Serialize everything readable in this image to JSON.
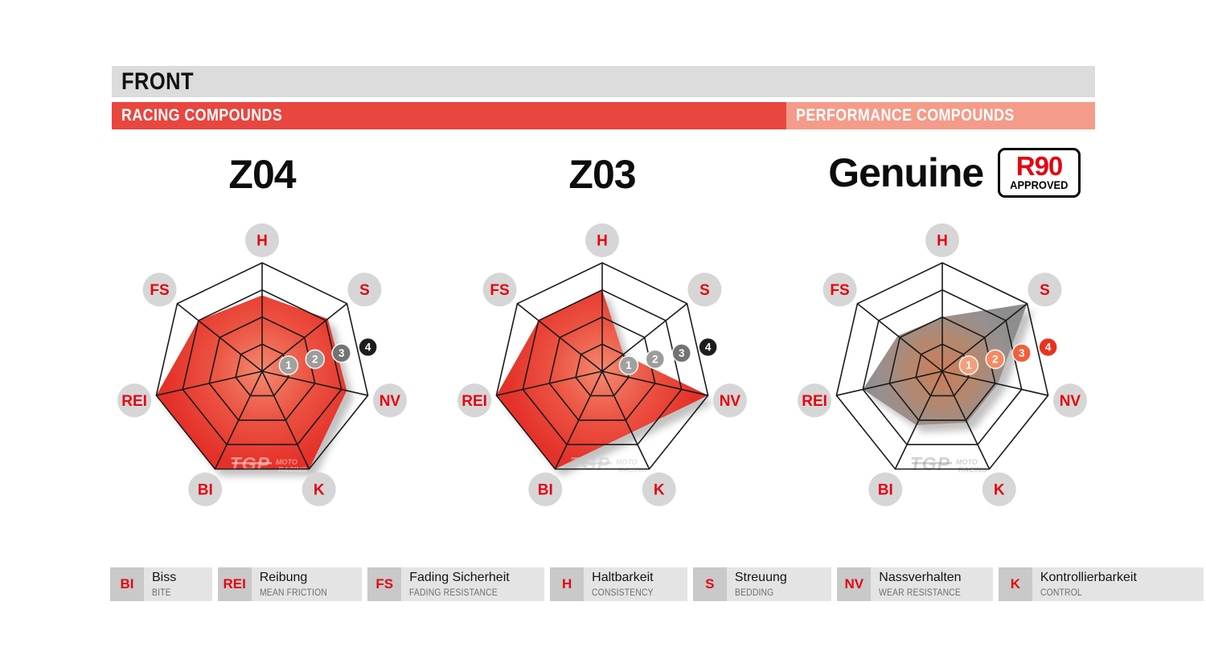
{
  "header": {
    "title": "FRONT",
    "racing_label": "RACING COMPOUNDS",
    "performance_label": "PERFORMANCE COMPOUNDS"
  },
  "badge": {
    "line1": "R90",
    "line2": "APPROVED"
  },
  "watermark": {
    "logo": "TGP",
    "line1": "MOTO",
    "line2": "RACING"
  },
  "colors": {
    "header_gray": "#dcdcdc",
    "racing_red": "#e8463f",
    "performance_salmon": "#f49b89",
    "label_red": "#e30613",
    "label_circle_gray": "#d6d6d6",
    "grid_black": "#1b1b1b",
    "legend_abbr_bg": "#c9c9c9",
    "legend_text_bg": "#e4e4e4",
    "legend_english_gray": "#6e6e6e"
  },
  "chart_data": [
    {
      "type": "radar",
      "title": "Z04",
      "group": "RACING COMPOUNDS",
      "axes": [
        "H",
        "S",
        "NV",
        "K",
        "BI",
        "REI",
        "FS"
      ],
      "values": [
        2.8,
        3.1,
        3.2,
        4,
        4,
        4,
        3
      ],
      "scale_range": [
        0,
        4
      ],
      "scale_ticks": [
        1,
        2,
        3,
        4
      ],
      "marker_colors": [
        "#a1a1a0",
        "#9c9c9b",
        "#737372",
        "#1d1d1b"
      ],
      "fill_stops": [
        {
          "offset": 0,
          "color": "#f38970"
        },
        {
          "offset": 0.5,
          "color": "#ec5443"
        },
        {
          "offset": 1,
          "color": "#e43129"
        }
      ],
      "watermark_color": "rgba(255,255,255,0.45)"
    },
    {
      "type": "radar",
      "title": "Z03",
      "group": "RACING COMPOUNDS",
      "axes": [
        "H",
        "S",
        "NV",
        "K",
        "BI",
        "REI",
        "FS"
      ],
      "values": [
        3,
        1,
        4,
        2.5,
        4,
        4,
        3
      ],
      "scale_range": [
        0,
        4
      ],
      "scale_ticks": [
        1,
        2,
        3,
        4
      ],
      "marker_colors": [
        "#a1a1a0",
        "#9c9c9b",
        "#737372",
        "#1d1d1b"
      ],
      "fill_stops": [
        {
          "offset": 0,
          "color": "#f38970"
        },
        {
          "offset": 0.5,
          "color": "#ec5443"
        },
        {
          "offset": 1,
          "color": "#e43129"
        }
      ],
      "watermark_color": "rgba(200,200,200,0.55)"
    },
    {
      "type": "radar",
      "title": "Genuine",
      "group": "PERFORMANCE COMPOUNDS",
      "badge": "R90 APPROVED",
      "axes": [
        "H",
        "S",
        "NV",
        "K",
        "BI",
        "REI",
        "FS"
      ],
      "values": [
        2,
        4,
        2.1,
        2.1,
        2.2,
        3,
        2.1
      ],
      "scale_range": [
        0,
        4
      ],
      "scale_ticks": [
        1,
        2,
        3,
        4
      ],
      "marker_colors": [
        "#f59e7d",
        "#f58a62",
        "#f1603a",
        "#e8321f"
      ],
      "fill_stops": [
        {
          "offset": 0,
          "color": "#cb7c59"
        },
        {
          "offset": 0.4,
          "color": "#b3886f"
        },
        {
          "offset": 0.75,
          "color": "#979090"
        },
        {
          "offset": 1,
          "color": "#8d8d8d"
        }
      ],
      "watermark_color": "rgba(140,140,140,0.4)"
    }
  ],
  "legend": [
    {
      "abbr": "BI",
      "de": "Biss",
      "en": "BITE"
    },
    {
      "abbr": "REI",
      "de": "Reibung",
      "en": "MEAN FRICTION"
    },
    {
      "abbr": "FS",
      "de": "Fading Sicherheit",
      "en": "FADING RESISTANCE"
    },
    {
      "abbr": "H",
      "de": "Haltbarkeit",
      "en": "CONSISTENCY"
    },
    {
      "abbr": "S",
      "de": "Streuung",
      "en": "BEDDING"
    },
    {
      "abbr": "NV",
      "de": "Nassverhalten",
      "en": "WEAR RESISTANCE"
    },
    {
      "abbr": "K",
      "de": "Kontrollierbarkeit",
      "en": "CONTROL"
    }
  ]
}
